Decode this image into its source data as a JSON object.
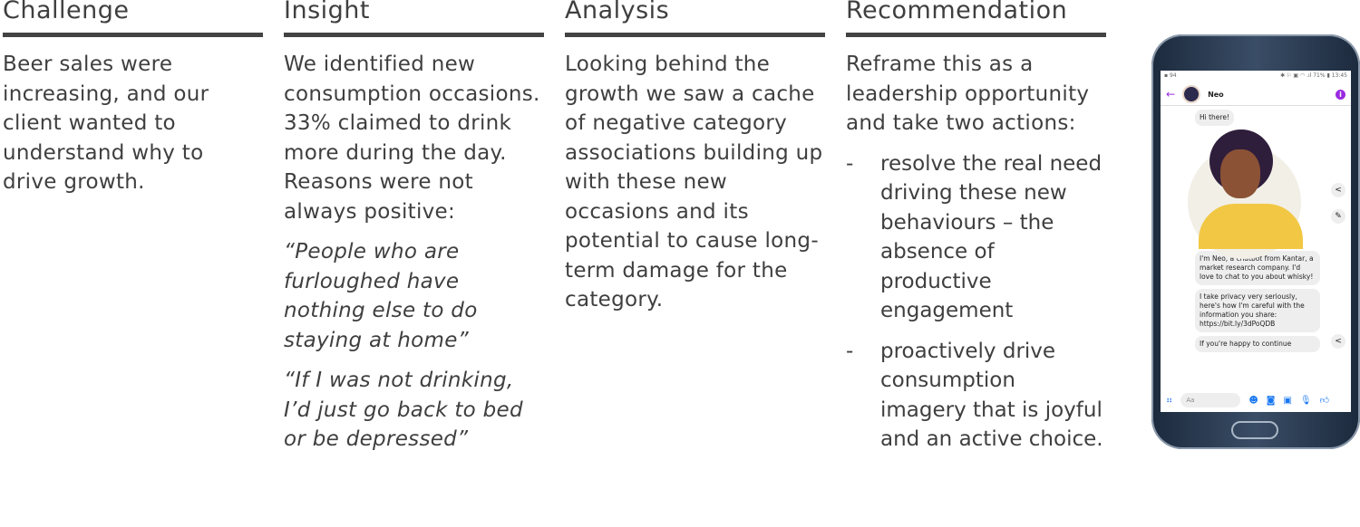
{
  "columns": [
    {
      "title": "Challenge",
      "paragraphs": [
        "Beer sales were increasing, and our client wanted to understand why to drive growth."
      ]
    },
    {
      "title": "Insight",
      "paragraphs": [
        "We identified new consumption occasions. 33% claimed to drink more during the day. Reasons were not always positive:"
      ],
      "quotes": [
        "“People who are furloughed have nothing else to do staying at home”",
        "“If I was not drinking, I’d just go back to bed or be depressed”"
      ]
    },
    {
      "title": "Analysis",
      "paragraphs": [
        "Looking behind the growth we saw a cache of negative category associations building up with these new occasions and its potential to cause long-term damage for the category."
      ]
    },
    {
      "title": "Recommendation",
      "paragraphs": [
        "Reframe this as a leadership opportunity and take two actions:"
      ],
      "bullets": [
        "resolve the real need driving these new behaviours – the absence of productive engagement",
        "proactively drive consumption imagery that is joyful and an active choice."
      ],
      "bullet_marker": "-"
    }
  ],
  "phone": {
    "status_left": "▪ 94",
    "status_right": "✱ ⚐ ▣ ◠ .ıl 71% ▮ 13:45",
    "contact_name": "Neo",
    "messages": [
      "Hi there!",
      "I'm Neo, a chatbot from Kantar, a market research company. I'd love to chat to you about whisky!",
      "I take privacy very seriously, here's how I'm careful with the information you share: https://bit.ly/3dPoQDB",
      "If you're happy to continue"
    ],
    "input_placeholder": "Aa",
    "accent": "#9a2be0",
    "messenger_blue": "#1877f2"
  }
}
